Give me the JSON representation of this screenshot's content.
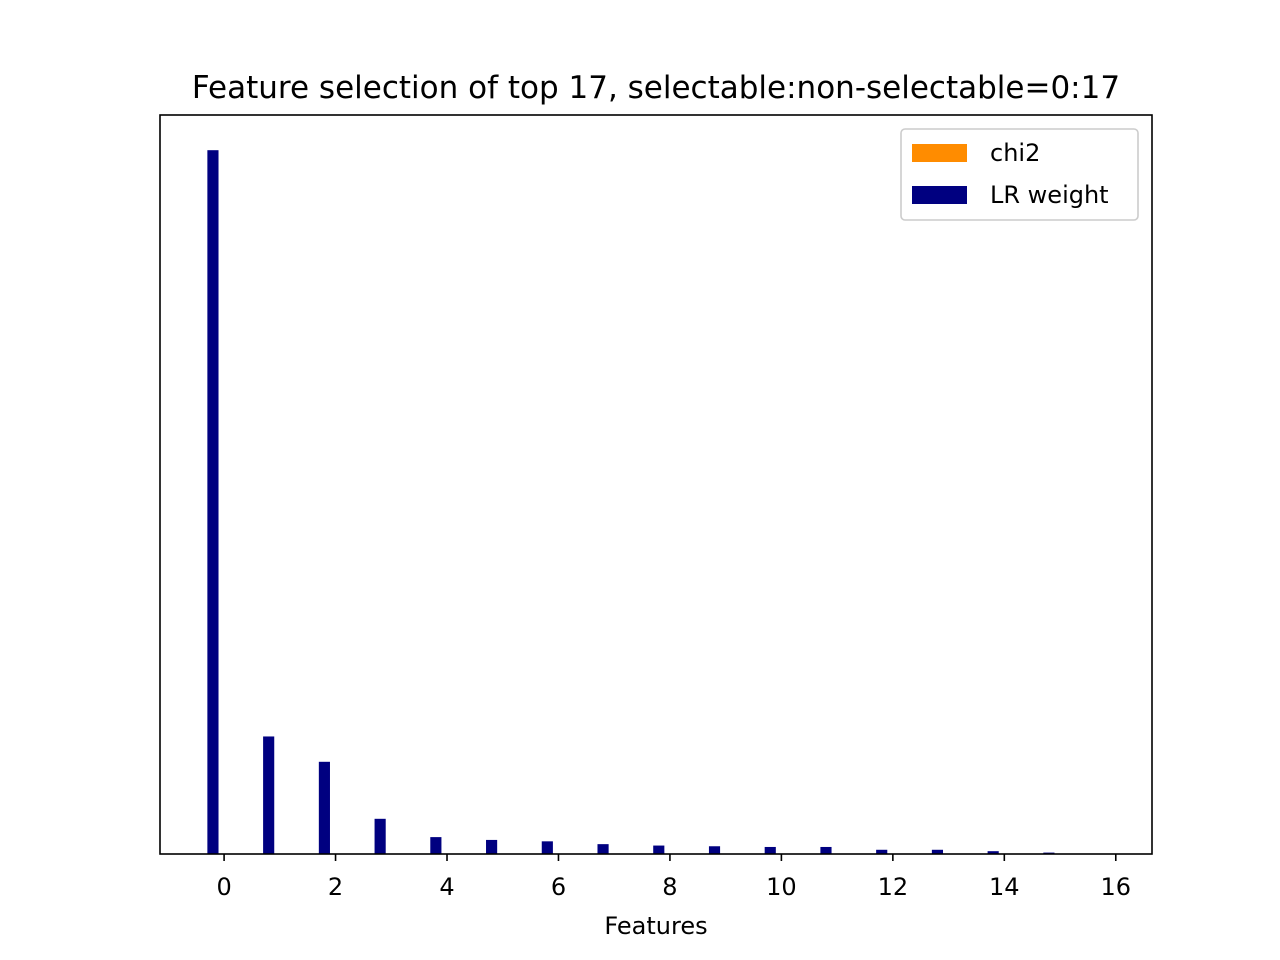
{
  "chart_data": {
    "type": "bar",
    "title": "Feature selection of top 17, selectable:non-selectable=0:17",
    "xlabel": "Features",
    "ylabel": "",
    "x": [
      0,
      1,
      2,
      3,
      4,
      5,
      6,
      7,
      8,
      9,
      10,
      11,
      12,
      13,
      14,
      15,
      16
    ],
    "xticks": [
      "0",
      "2",
      "4",
      "6",
      "8",
      "10",
      "12",
      "14",
      "16"
    ],
    "xtick_values": [
      0,
      2,
      4,
      6,
      8,
      10,
      12,
      14,
      16
    ],
    "xlim": [
      -1.15,
      16.65
    ],
    "ylim": [
      0,
      1.05
    ],
    "yticks_shown": false,
    "series": [
      {
        "name": "chi2",
        "color": "#ff8c00",
        "values": [
          0,
          0,
          0,
          0,
          0,
          0,
          0,
          0,
          0,
          0,
          0,
          0,
          0,
          0,
          0,
          0,
          0
        ]
      },
      {
        "name": "LR weight",
        "color": "#000080",
        "values": [
          1.0,
          0.167,
          0.131,
          0.05,
          0.024,
          0.02,
          0.018,
          0.014,
          0.012,
          0.011,
          0.01,
          0.01,
          0.006,
          0.006,
          0.004,
          0.002,
          0.0
        ]
      }
    ],
    "legend": "top-right",
    "grid": false
  }
}
